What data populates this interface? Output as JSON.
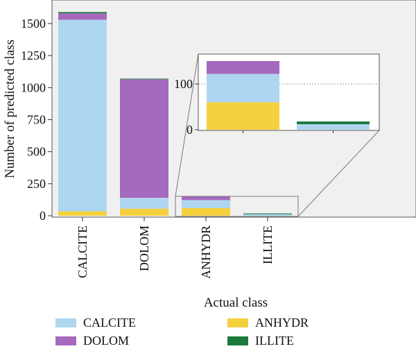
{
  "chart_data": {
    "type": "bar",
    "stacked": true,
    "categories": [
      "CALCITE",
      "DOLOM",
      "ANHYDR",
      "ILLITE"
    ],
    "series": [
      {
        "name": "ANHYDR",
        "color": "#f4d03f",
        "values": [
          35,
          55,
          60,
          0
        ]
      },
      {
        "name": "CALCITE",
        "color": "#aed6f1",
        "values": [
          1495,
          85,
          62,
          12
        ]
      },
      {
        "name": "DOLOM",
        "color": "#a569bd",
        "values": [
          50,
          925,
          28,
          0
        ]
      },
      {
        "name": "ILLITE",
        "color": "#1a7a3e",
        "values": [
          10,
          5,
          0,
          6
        ]
      }
    ],
    "xlabel": "Actual class",
    "ylabel": "Number of predicted class",
    "ylim": [
      0,
      1600
    ],
    "yticks": [
      0,
      250,
      500,
      750,
      1000,
      1250,
      1500
    ],
    "inset": {
      "categories": [
        "ANHYDR",
        "ILLITE"
      ],
      "ylim": [
        0,
        155
      ],
      "yticks": [
        0,
        100
      ],
      "reference_line": 100
    }
  },
  "legend": {
    "entries": [
      {
        "name": "CALCITE",
        "color": "#aed6f1"
      },
      {
        "name": "ANHYDR",
        "color": "#f4d03f"
      },
      {
        "name": "DOLOM",
        "color": "#a569bd"
      },
      {
        "name": "ILLITE",
        "color": "#1a7a3e"
      }
    ]
  }
}
